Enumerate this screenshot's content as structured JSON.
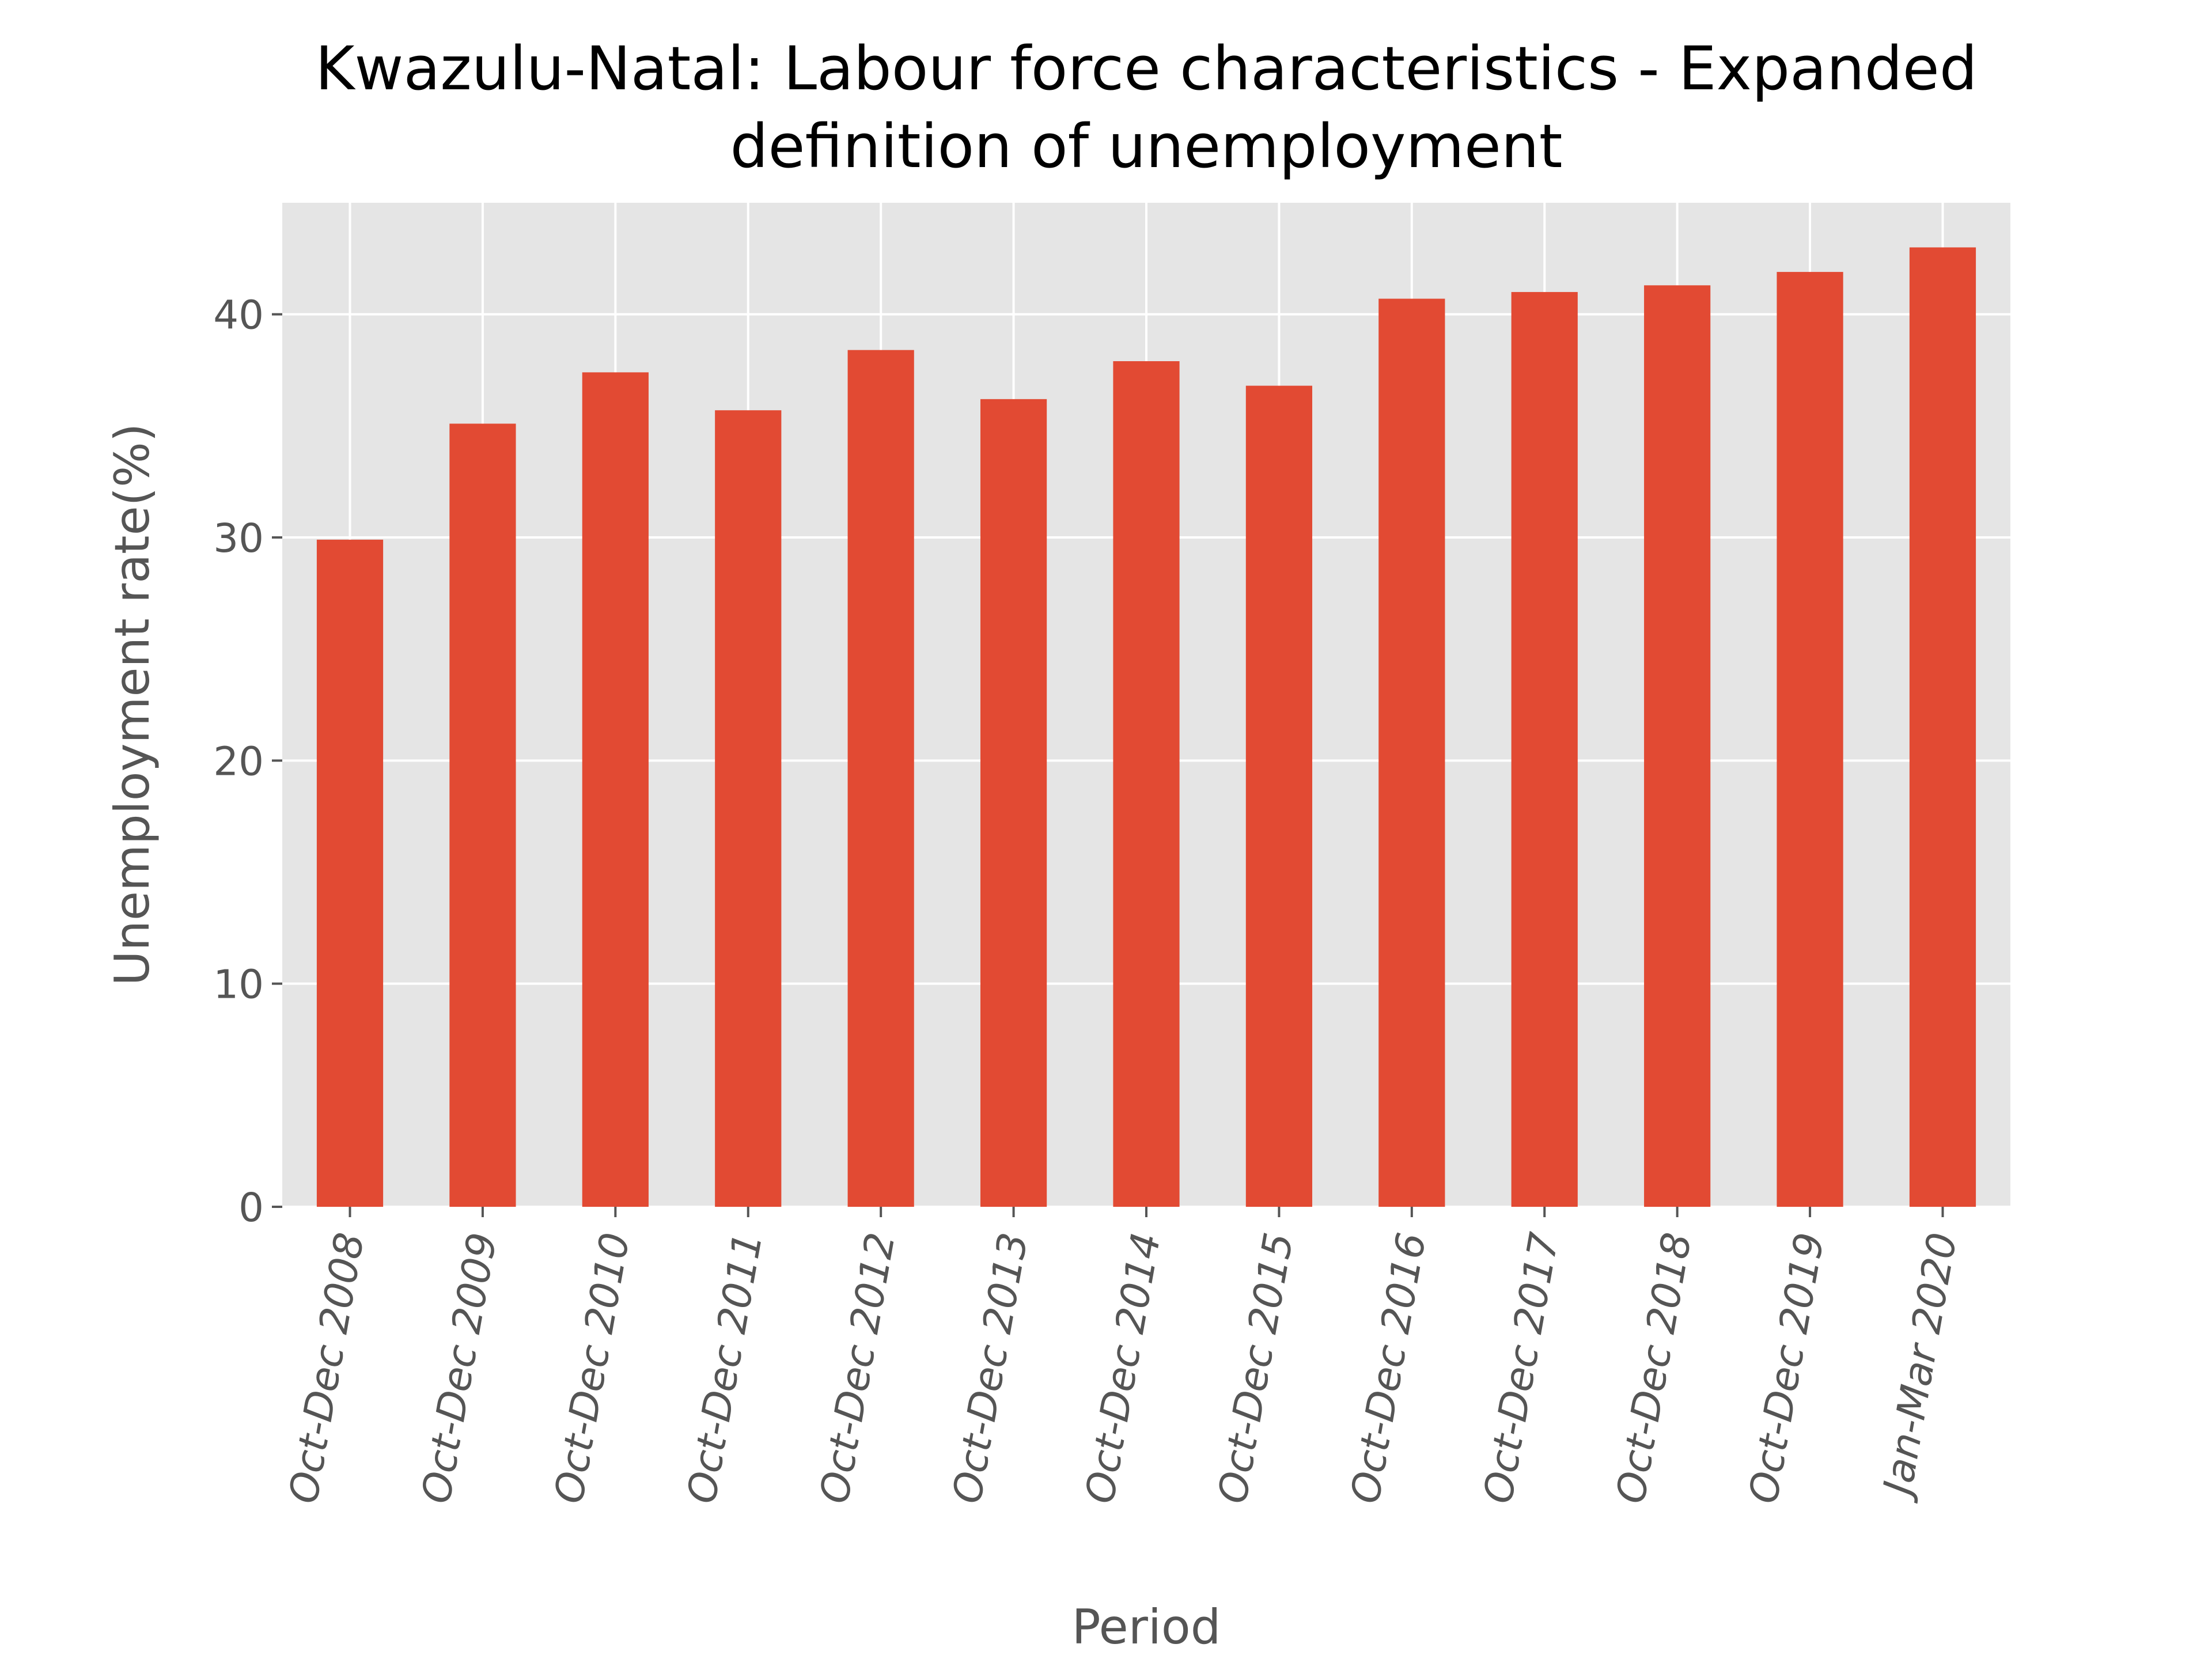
{
  "chart_data": {
    "type": "bar",
    "title_lines": [
      "Kwazulu-Natal: Labour force characteristics - Expanded",
      "definition of unemployment"
    ],
    "xlabel": "Period",
    "ylabel": "Unemployment rate(%)",
    "categories": [
      "Oct-Dec 2008",
      "Oct-Dec 2009",
      "Oct-Dec 2010",
      "Oct-Dec 2011",
      "Oct-Dec 2012",
      "Oct-Dec 2013",
      "Oct-Dec 2014",
      "Oct-Dec 2015",
      "Oct-Dec 2016",
      "Oct-Dec 2017",
      "Oct-Dec 2018",
      "Oct-Dec 2019",
      "Jan-Mar 2020"
    ],
    "values": [
      29.9,
      35.1,
      37.4,
      35.7,
      38.4,
      36.2,
      37.9,
      36.8,
      40.7,
      41.0,
      41.3,
      41.9,
      43.0
    ],
    "ylim": [
      0,
      45
    ],
    "yticks": [
      0,
      10,
      20,
      30,
      40
    ],
    "grid": true,
    "legend": "none",
    "colors": {
      "bar": "#E24A33",
      "plot_background": "#E5E5E5",
      "grid": "#FFFFFF",
      "tick_text": "#555555",
      "title_text": "#000000"
    }
  }
}
